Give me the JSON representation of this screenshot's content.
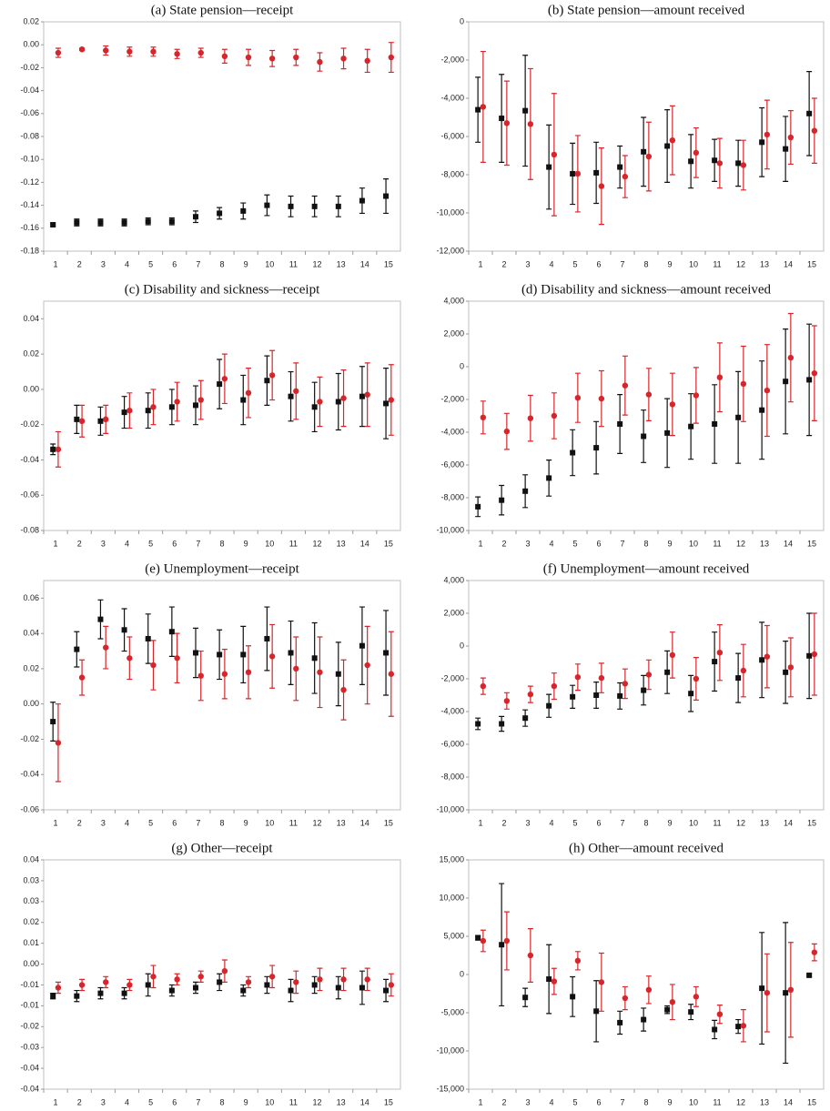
{
  "chart_data": [
    {
      "type": "errorbar",
      "title": "(a) State pension—receipt",
      "categories": [
        1,
        2,
        3,
        4,
        5,
        6,
        7,
        8,
        9,
        10,
        11,
        12,
        13,
        14,
        15
      ],
      "ylim": [
        -0.18,
        0.02
      ],
      "yticks": [
        0.02,
        {
          "value": 0,
          "label": "0.00"
        },
        -0.02,
        -0.04,
        -0.06,
        -0.08,
        {
          "value": -0.1,
          "label": "-0.10"
        },
        -0.12,
        -0.14,
        -0.16,
        -0.18
      ],
      "series": [
        {
          "color": "#111111",
          "marker": "square",
          "values": [
            -0.157,
            -0.155,
            -0.155,
            -0.155,
            -0.154,
            -0.154,
            -0.15,
            -0.147,
            -0.145,
            -0.14,
            -0.141,
            -0.141,
            -0.141,
            -0.136,
            -0.132
          ],
          "errors": [
            0.001,
            0.003,
            0.003,
            0.003,
            0.003,
            0.003,
            0.005,
            0.005,
            0.007,
            0.009,
            0.009,
            0.009,
            0.009,
            0.011,
            0.015
          ]
        },
        {
          "color": "#d7262b",
          "marker": "circle",
          "values": [
            -0.007,
            -0.004,
            -0.005,
            -0.006,
            -0.006,
            -0.008,
            -0.007,
            -0.01,
            -0.011,
            -0.012,
            -0.011,
            -0.015,
            -0.012,
            -0.014,
            -0.011
          ],
          "errors": [
            0.004,
            0.001,
            0.004,
            0.004,
            0.004,
            0.004,
            0.004,
            0.006,
            0.007,
            0.007,
            0.007,
            0.008,
            0.009,
            0.01,
            0.013
          ]
        }
      ]
    },
    {
      "type": "errorbar",
      "title": "(b) State pension—amount received",
      "categories": [
        1,
        2,
        3,
        4,
        5,
        6,
        7,
        8,
        9,
        10,
        11,
        12,
        13,
        14,
        15
      ],
      "ylim": [
        -12000,
        0
      ],
      "yticks": [
        0,
        {
          "value": -2000,
          "label": "-2,000"
        },
        {
          "value": -4000,
          "label": "-4,000"
        },
        {
          "value": -6000,
          "label": "-6,000"
        },
        {
          "value": -8000,
          "label": "-8,000"
        },
        {
          "value": -10000,
          "label": "-10,000"
        },
        {
          "value": -12000,
          "label": "-12,000"
        }
      ],
      "series": [
        {
          "color": "#111111",
          "marker": "square",
          "values": [
            -4600,
            -5050,
            -4650,
            -7600,
            -7950,
            -7900,
            -7600,
            -6800,
            -6500,
            -7300,
            -7250,
            -7400,
            -6300,
            -6650,
            -4800
          ],
          "errors": [
            1700,
            2300,
            2900,
            2200,
            1600,
            1600,
            1100,
            1800,
            1900,
            1400,
            1100,
            1200,
            1800,
            1700,
            2200
          ]
        },
        {
          "color": "#d7262b",
          "marker": "circle",
          "values": [
            -4450,
            -5300,
            -5350,
            -6950,
            -7950,
            -8600,
            -8100,
            -7050,
            -6200,
            -6850,
            -7400,
            -7500,
            -5900,
            -6050,
            -5700
          ],
          "errors": [
            2900,
            2200,
            2900,
            3200,
            2000,
            2000,
            1100,
            1800,
            1800,
            1300,
            1300,
            1300,
            1800,
            1400,
            1700
          ]
        }
      ]
    },
    {
      "type": "errorbar",
      "title": "(c) Disability and sickness—receipt",
      "categories": [
        1,
        2,
        3,
        4,
        5,
        6,
        7,
        8,
        9,
        10,
        11,
        12,
        13,
        14,
        15
      ],
      "ylim": [
        -0.08,
        0.05
      ],
      "yticks": [
        0.04,
        0.02,
        {
          "value": 0,
          "label": "0.00"
        },
        -0.02,
        -0.04,
        -0.06,
        -0.08
      ],
      "series": [
        {
          "color": "#111111",
          "marker": "square",
          "values": [
            -0.034,
            -0.017,
            -0.018,
            -0.013,
            -0.012,
            -0.01,
            -0.009,
            0.003,
            -0.006,
            0.005,
            -0.004,
            -0.01,
            -0.007,
            -0.004,
            -0.008
          ],
          "errors": [
            0.003,
            0.008,
            0.008,
            0.009,
            0.01,
            0.01,
            0.011,
            0.014,
            0.014,
            0.014,
            0.014,
            0.014,
            0.016,
            0.017,
            0.02
          ]
        },
        {
          "color": "#d7262b",
          "marker": "circle",
          "values": [
            -0.034,
            -0.018,
            -0.017,
            -0.012,
            -0.01,
            -0.007,
            -0.006,
            0.006,
            -0.002,
            0.008,
            -0.001,
            -0.007,
            -0.005,
            -0.003,
            -0.006
          ],
          "errors": [
            0.01,
            0.009,
            0.008,
            0.01,
            0.01,
            0.011,
            0.011,
            0.014,
            0.014,
            0.014,
            0.016,
            0.014,
            0.016,
            0.018,
            0.02
          ]
        }
      ]
    },
    {
      "type": "errorbar",
      "title": "(d) Disability and sickness—amount received",
      "categories": [
        1,
        2,
        3,
        4,
        5,
        6,
        7,
        8,
        9,
        10,
        11,
        12,
        13,
        14,
        15
      ],
      "ylim": [
        -10000,
        4000
      ],
      "yticks": [
        {
          "value": 4000,
          "label": "4,000"
        },
        {
          "value": 2000,
          "label": "2,000"
        },
        0,
        {
          "value": -2000,
          "label": "-2,000"
        },
        {
          "value": -4000,
          "label": "-4,000"
        },
        {
          "value": -6000,
          "label": "-6,000"
        },
        {
          "value": -8000,
          "label": "-8,000"
        },
        {
          "value": -10000,
          "label": "-10,000"
        }
      ],
      "series": [
        {
          "color": "#111111",
          "marker": "square",
          "values": [
            -8550,
            -8150,
            -7600,
            -6800,
            -5250,
            -4950,
            -3500,
            -4250,
            -4050,
            -3650,
            -3500,
            -3100,
            -2650,
            -900,
            -800
          ],
          "errors": [
            600,
            900,
            1000,
            1100,
            1400,
            1600,
            1800,
            1600,
            2100,
            2000,
            2400,
            2800,
            3000,
            3200,
            3400
          ]
        },
        {
          "color": "#d7262b",
          "marker": "circle",
          "values": [
            -3100,
            -3950,
            -3150,
            -3000,
            -1900,
            -1950,
            -1150,
            -1700,
            -2300,
            -1750,
            -650,
            -1050,
            -1450,
            550,
            -400
          ],
          "errors": [
            1000,
            1100,
            1400,
            1400,
            1500,
            1700,
            1800,
            1600,
            1900,
            1700,
            2100,
            2300,
            2800,
            2700,
            2900
          ]
        }
      ]
    },
    {
      "type": "errorbar",
      "title": "(e) Unemployment—receipt",
      "categories": [
        1,
        2,
        3,
        4,
        5,
        6,
        7,
        8,
        9,
        10,
        11,
        12,
        13,
        14,
        15
      ],
      "ylim": [
        -0.06,
        0.07
      ],
      "yticks": [
        0.06,
        0.04,
        0.02,
        {
          "value": 0,
          "label": "0.00"
        },
        -0.02,
        -0.04,
        -0.06
      ],
      "series": [
        {
          "color": "#111111",
          "marker": "square",
          "values": [
            -0.01,
            0.031,
            0.048,
            0.042,
            0.037,
            0.041,
            0.029,
            0.028,
            0.028,
            0.037,
            0.029,
            0.026,
            0.017,
            0.033,
            0.029
          ],
          "errors": [
            0.011,
            0.01,
            0.011,
            0.012,
            0.014,
            0.014,
            0.014,
            0.014,
            0.016,
            0.018,
            0.018,
            0.02,
            0.018,
            0.022,
            0.024
          ]
        },
        {
          "color": "#d7262b",
          "marker": "circle",
          "values": [
            -0.022,
            0.015,
            0.032,
            0.026,
            0.022,
            0.026,
            0.016,
            0.017,
            0.018,
            0.027,
            0.02,
            0.018,
            0.008,
            0.022,
            0.017
          ],
          "errors": [
            0.022,
            0.01,
            0.012,
            0.012,
            0.014,
            0.014,
            0.014,
            0.014,
            0.015,
            0.018,
            0.018,
            0.02,
            0.017,
            0.022,
            0.024
          ]
        }
      ]
    },
    {
      "type": "errorbar",
      "title": "(f) Unemployment—amount received",
      "categories": [
        1,
        2,
        3,
        4,
        5,
        6,
        7,
        8,
        9,
        10,
        11,
        12,
        13,
        14,
        15
      ],
      "ylim": [
        -10000,
        4000
      ],
      "yticks": [
        {
          "value": 4000,
          "label": "4,000"
        },
        {
          "value": 2000,
          "label": "2,000"
        },
        0,
        {
          "value": -2000,
          "label": "-2,000"
        },
        {
          "value": -4000,
          "label": "-4,000"
        },
        {
          "value": -6000,
          "label": "-6,000"
        },
        {
          "value": -8000,
          "label": "-8,000"
        },
        {
          "value": -10000,
          "label": "-10,000"
        }
      ],
      "series": [
        {
          "color": "#111111",
          "marker": "square",
          "values": [
            -4750,
            -4750,
            -4400,
            -3650,
            -3100,
            -3000,
            -3050,
            -2700,
            -1600,
            -2900,
            -950,
            -1950,
            -850,
            -1600,
            -600
          ],
          "errors": [
            350,
            450,
            500,
            700,
            700,
            800,
            800,
            900,
            1300,
            1100,
            1800,
            1500,
            2300,
            1900,
            2600
          ]
        },
        {
          "color": "#d7262b",
          "marker": "circle",
          "values": [
            -2450,
            -3350,
            -2950,
            -2450,
            -1900,
            -1950,
            -2300,
            -1750,
            -550,
            -2000,
            -400,
            -1500,
            -650,
            -1300,
            -500
          ],
          "errors": [
            500,
            500,
            500,
            800,
            800,
            900,
            900,
            900,
            1400,
            1300,
            1700,
            1600,
            1900,
            1800,
            2500
          ]
        }
      ]
    },
    {
      "type": "errorbar",
      "title": "(g) Other—receipt",
      "categories": [
        1,
        2,
        3,
        4,
        5,
        6,
        7,
        8,
        9,
        10,
        11,
        12,
        13,
        14,
        15
      ],
      "ylim": [
        -0.0425,
        0.04
      ],
      "yticks": [
        0.04,
        {
          "value": 0.0325,
          "label": "0.03"
        },
        {
          "value": 0.025,
          "label": "0.03"
        },
        {
          "value": 0.0175,
          "label": "0.02"
        },
        0.01,
        {
          "value": 0.0025,
          "label": "0.00"
        },
        {
          "value": -0.005,
          "label": "-0.01"
        },
        {
          "value": -0.0125,
          "label": "-0.01"
        },
        -0.02,
        {
          "value": -0.0275,
          "label": "-0.03"
        },
        {
          "value": -0.035,
          "label": "-0.04"
        },
        {
          "value": -0.0425,
          "label": "-0.04"
        }
      ],
      "series": [
        {
          "color": "#111111",
          "marker": "square",
          "values": [
            -0.009,
            -0.009,
            -0.008,
            -0.008,
            -0.005,
            -0.007,
            -0.006,
            -0.004,
            -0.007,
            -0.005,
            -0.007,
            -0.005,
            -0.006,
            -0.006,
            -0.007
          ],
          "errors": [
            0.001,
            0.002,
            0.002,
            0.002,
            0.004,
            0.002,
            0.002,
            0.003,
            0.002,
            0.003,
            0.004,
            0.003,
            0.004,
            0.006,
            0.004
          ]
        },
        {
          "color": "#d7262b",
          "marker": "circle",
          "values": [
            -0.006,
            -0.005,
            -0.004,
            -0.005,
            -0.002,
            -0.003,
            -0.002,
            0.0,
            -0.004,
            -0.002,
            -0.004,
            -0.003,
            -0.003,
            -0.003,
            -0.005
          ],
          "errors": [
            0.002,
            0.002,
            0.002,
            0.002,
            0.004,
            0.002,
            0.002,
            0.004,
            0.002,
            0.004,
            0.004,
            0.004,
            0.004,
            0.004,
            0.004
          ]
        }
      ]
    },
    {
      "type": "errorbar",
      "title": "(h) Other—amount received",
      "categories": [
        1,
        2,
        3,
        4,
        5,
        6,
        7,
        8,
        9,
        10,
        11,
        12,
        13,
        14,
        15
      ],
      "ylim": [
        -15000,
        15000
      ],
      "yticks": [
        {
          "value": 15000,
          "label": "15,000"
        },
        {
          "value": 10000,
          "label": "10,000"
        },
        {
          "value": 5000,
          "label": "5,000"
        },
        0,
        {
          "value": -5000,
          "label": "-5,000"
        },
        {
          "value": -10000,
          "label": "-10,000"
        },
        {
          "value": -15000,
          "label": "-15,000"
        }
      ],
      "series": [
        {
          "color": "#111111",
          "marker": "square",
          "values": [
            4800,
            3900,
            -3000,
            -600,
            -2900,
            -4800,
            -6300,
            -5900,
            -4600,
            -4900,
            -7200,
            -6800,
            -1800,
            -2400,
            -100
          ],
          "errors": [
            300,
            8000,
            1200,
            4500,
            2600,
            4000,
            1500,
            1500,
            500,
            1000,
            1200,
            900,
            7300,
            9200,
            200
          ]
        },
        {
          "color": "#d7262b",
          "marker": "circle",
          "values": [
            4400,
            4400,
            2500,
            -900,
            1800,
            -1000,
            -3100,
            -2000,
            -3600,
            -2900,
            -5200,
            -6700,
            -2400,
            -2000,
            2900
          ],
          "errors": [
            1400,
            3800,
            3500,
            1700,
            1200,
            3800,
            1500,
            1800,
            2300,
            1300,
            1200,
            2100,
            5100,
            6200,
            1100
          ]
        }
      ]
    }
  ]
}
